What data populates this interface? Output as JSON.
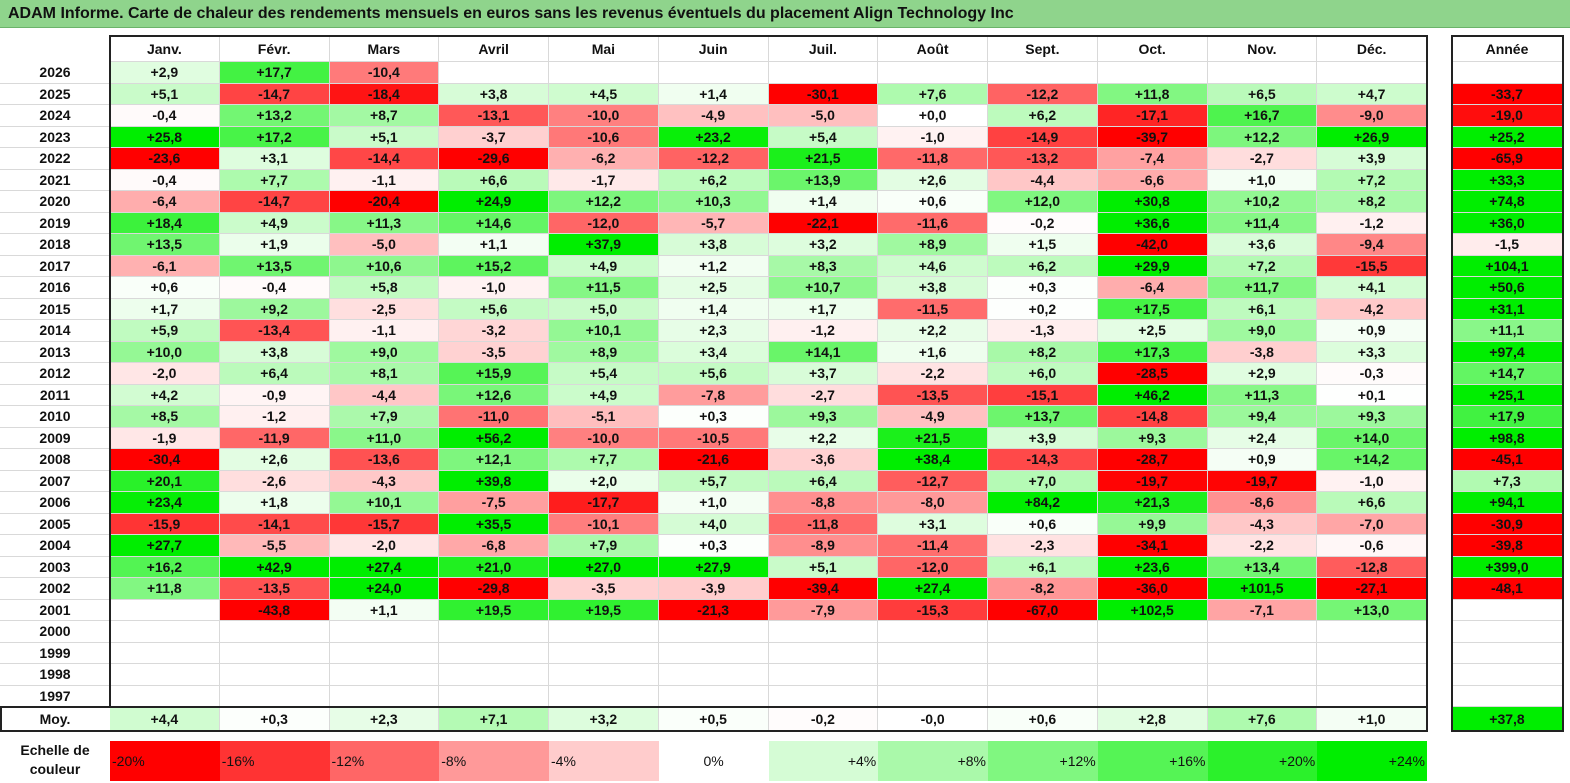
{
  "title": "ADAM Informe. Carte de chaleur des rendements mensuels en euros sans les revenus éventuels du placement Align Technology Inc",
  "chart_data": {
    "type": "heatmap",
    "title": "ADAM Informe. Carte de chaleur des rendements mensuels en euros sans les revenus éventuels du placement Align Technology Inc",
    "columns": [
      "Janv.",
      "Févr.",
      "Mars",
      "Avril",
      "Mai",
      "Juin",
      "Juil.",
      "Août",
      "Sept.",
      "Oct.",
      "Nov.",
      "Déc."
    ],
    "year_column_label": "Année",
    "rows": [
      {
        "year": "2026",
        "values": [
          "+2,9",
          "+17,7",
          "-10,4",
          "",
          "",
          "",
          "",
          "",
          "",
          "",
          "",
          ""
        ],
        "annual": ""
      },
      {
        "year": "2025",
        "values": [
          "+5,1",
          "-14,7",
          "-18,4",
          "+3,8",
          "+4,5",
          "+1,4",
          "-30,1",
          "+7,6",
          "-12,2",
          "+11,8",
          "+6,5",
          "+4,7"
        ],
        "annual": "-33,7"
      },
      {
        "year": "2024",
        "values": [
          "-0,4",
          "+13,2",
          "+8,7",
          "-13,1",
          "-10,0",
          "-4,9",
          "-5,0",
          "+0,0",
          "+6,2",
          "-17,1",
          "+16,7",
          "-9,0"
        ],
        "annual": "-19,0"
      },
      {
        "year": "2023",
        "values": [
          "+25,8",
          "+17,2",
          "+5,1",
          "-3,7",
          "-10,6",
          "+23,2",
          "+5,4",
          "-1,0",
          "-14,9",
          "-39,7",
          "+12,2",
          "+26,9"
        ],
        "annual": "+25,2"
      },
      {
        "year": "2022",
        "values": [
          "-23,6",
          "+3,1",
          "-14,4",
          "-29,6",
          "-6,2",
          "-12,2",
          "+21,5",
          "-11,8",
          "-13,2",
          "-7,4",
          "-2,7",
          "+3,9"
        ],
        "annual": "-65,9"
      },
      {
        "year": "2021",
        "values": [
          "-0,4",
          "+7,7",
          "-1,1",
          "+6,6",
          "-1,7",
          "+6,2",
          "+13,9",
          "+2,6",
          "-4,4",
          "-6,6",
          "+1,0",
          "+7,2"
        ],
        "annual": "+33,3"
      },
      {
        "year": "2020",
        "values": [
          "-6,4",
          "-14,7",
          "-20,4",
          "+24,9",
          "+12,2",
          "+10,3",
          "+1,4",
          "+0,6",
          "+12,0",
          "+30,8",
          "+10,2",
          "+8,2"
        ],
        "annual": "+74,8"
      },
      {
        "year": "2019",
        "values": [
          "+18,4",
          "+4,9",
          "+11,3",
          "+14,6",
          "-12,0",
          "-5,7",
          "-22,1",
          "-11,6",
          "-0,2",
          "+36,6",
          "+11,4",
          "-1,2"
        ],
        "annual": "+36,0"
      },
      {
        "year": "2018",
        "values": [
          "+13,5",
          "+1,9",
          "-5,0",
          "+1,1",
          "+37,9",
          "+3,8",
          "+3,2",
          "+8,9",
          "+1,5",
          "-42,0",
          "+3,6",
          "-9,4"
        ],
        "annual": "-1,5"
      },
      {
        "year": "2017",
        "values": [
          "-6,1",
          "+13,5",
          "+10,6",
          "+15,2",
          "+4,9",
          "+1,2",
          "+8,3",
          "+4,6",
          "+6,2",
          "+29,9",
          "+7,2",
          "-15,5"
        ],
        "annual": "+104,1"
      },
      {
        "year": "2016",
        "values": [
          "+0,6",
          "-0,4",
          "+5,8",
          "-1,0",
          "+11,5",
          "+2,5",
          "+10,7",
          "+3,8",
          "+0,3",
          "-6,4",
          "+11,7",
          "+4,1"
        ],
        "annual": "+50,6"
      },
      {
        "year": "2015",
        "values": [
          "+1,7",
          "+9,2",
          "-2,5",
          "+5,6",
          "+5,0",
          "+1,4",
          "+1,7",
          "-11,5",
          "+0,2",
          "+17,5",
          "+6,1",
          "-4,2"
        ],
        "annual": "+31,1"
      },
      {
        "year": "2014",
        "values": [
          "+5,9",
          "-13,4",
          "-1,1",
          "-3,2",
          "+10,1",
          "+2,3",
          "-1,2",
          "+2,2",
          "-1,3",
          "+2,5",
          "+9,0",
          "+0,9"
        ],
        "annual": "+11,1"
      },
      {
        "year": "2013",
        "values": [
          "+10,0",
          "+3,8",
          "+9,0",
          "-3,5",
          "+8,9",
          "+3,4",
          "+14,1",
          "+1,6",
          "+8,2",
          "+17,3",
          "-3,8",
          "+3,3"
        ],
        "annual": "+97,4"
      },
      {
        "year": "2012",
        "values": [
          "-2,0",
          "+6,4",
          "+8,1",
          "+15,9",
          "+5,4",
          "+5,6",
          "+3,7",
          "-2,2",
          "+6,0",
          "-28,5",
          "+2,9",
          "-0,3"
        ],
        "annual": "+14,7"
      },
      {
        "year": "2011",
        "values": [
          "+4,2",
          "-0,9",
          "-4,4",
          "+12,6",
          "+4,9",
          "-7,8",
          "-2,7",
          "-13,5",
          "-15,1",
          "+46,2",
          "+11,3",
          "+0,1"
        ],
        "annual": "+25,1"
      },
      {
        "year": "2010",
        "values": [
          "+8,5",
          "-1,2",
          "+7,9",
          "-11,0",
          "-5,1",
          "+0,3",
          "+9,3",
          "-4,9",
          "+13,7",
          "-14,8",
          "+9,4",
          "+9,3"
        ],
        "annual": "+17,9"
      },
      {
        "year": "2009",
        "values": [
          "-1,9",
          "-11,9",
          "+11,0",
          "+56,2",
          "-10,0",
          "-10,5",
          "+2,2",
          "+21,5",
          "+3,9",
          "+9,3",
          "+2,4",
          "+14,0"
        ],
        "annual": "+98,8"
      },
      {
        "year": "2008",
        "values": [
          "-30,4",
          "+2,6",
          "-13,6",
          "+12,1",
          "+7,7",
          "-21,6",
          "-3,6",
          "+38,4",
          "-14,3",
          "-28,7",
          "+0,9",
          "+14,2"
        ],
        "annual": "-45,1"
      },
      {
        "year": "2007",
        "values": [
          "+20,1",
          "-2,6",
          "-4,3",
          "+39,8",
          "+2,0",
          "+5,7",
          "+6,4",
          "-12,7",
          "+7,0",
          "-19,7",
          "-19,7",
          "-1,0"
        ],
        "annual": "+7,3"
      },
      {
        "year": "2006",
        "values": [
          "+23,4",
          "+1,8",
          "+10,1",
          "-7,5",
          "-17,7",
          "+1,0",
          "-8,8",
          "-8,0",
          "+84,2",
          "+21,3",
          "-8,6",
          "+6,6"
        ],
        "annual": "+94,1"
      },
      {
        "year": "2005",
        "values": [
          "-15,9",
          "-14,1",
          "-15,7",
          "+35,5",
          "-10,1",
          "+4,0",
          "-11,8",
          "+3,1",
          "+0,6",
          "+9,9",
          "-4,3",
          "-7,0"
        ],
        "annual": "-30,9"
      },
      {
        "year": "2004",
        "values": [
          "+27,7",
          "-5,5",
          "-2,0",
          "-6,8",
          "+7,9",
          "+0,3",
          "-8,9",
          "-11,4",
          "-2,3",
          "-34,1",
          "-2,2",
          "-0,6"
        ],
        "annual": "-39,8"
      },
      {
        "year": "2003",
        "values": [
          "+16,2",
          "+42,9",
          "+27,4",
          "+21,0",
          "+27,0",
          "+27,9",
          "+5,1",
          "-12,0",
          "+6,1",
          "+23,6",
          "+13,4",
          "-12,8"
        ],
        "annual": "+399,0"
      },
      {
        "year": "2002",
        "values": [
          "+11,8",
          "-13,5",
          "+24,0",
          "-29,8",
          "-3,5",
          "-3,9",
          "-39,4",
          "+27,4",
          "-8,2",
          "-36,0",
          "+101,5",
          "-27,1"
        ],
        "annual": "-48,1"
      },
      {
        "year": "2001",
        "values": [
          "",
          "-43,8",
          "+1,1",
          "+19,5",
          "+19,5",
          "-21,3",
          "-7,9",
          "-15,3",
          "-67,0",
          "+102,5",
          "-7,1",
          "+13,0"
        ],
        "annual": ""
      },
      {
        "year": "2000",
        "values": [
          "",
          "",
          "",
          "",
          "",
          "",
          "",
          "",
          "",
          "",
          "",
          ""
        ],
        "annual": ""
      },
      {
        "year": "1999",
        "values": [
          "",
          "",
          "",
          "",
          "",
          "",
          "",
          "",
          "",
          "",
          "",
          ""
        ],
        "annual": ""
      },
      {
        "year": "1998",
        "values": [
          "",
          "",
          "",
          "",
          "",
          "",
          "",
          "",
          "",
          "",
          "",
          ""
        ],
        "annual": ""
      },
      {
        "year": "1997",
        "values": [
          "",
          "",
          "",
          "",
          "",
          "",
          "",
          "",
          "",
          "",
          "",
          ""
        ],
        "annual": ""
      }
    ],
    "average": {
      "label": "Moy.",
      "values": [
        "+4,4",
        "+0,3",
        "+2,3",
        "+7,1",
        "+3,2",
        "+0,5",
        "-0,2",
        "-0,0",
        "+0,6",
        "+2,8",
        "+7,6",
        "+1,0"
      ],
      "annual": "+37,8"
    },
    "color_scale": {
      "label": "Echelle de\ncouleur",
      "steps": [
        "-20%",
        "-16%",
        "-12%",
        "-8%",
        "-4%",
        "0%",
        "+4%",
        "+8%",
        "+12%",
        "+16%",
        "+20%",
        "+24%"
      ],
      "negative_color": "#ff0000",
      "neutral_color": "#ffffff",
      "positive_color": "#00ee00"
    }
  }
}
